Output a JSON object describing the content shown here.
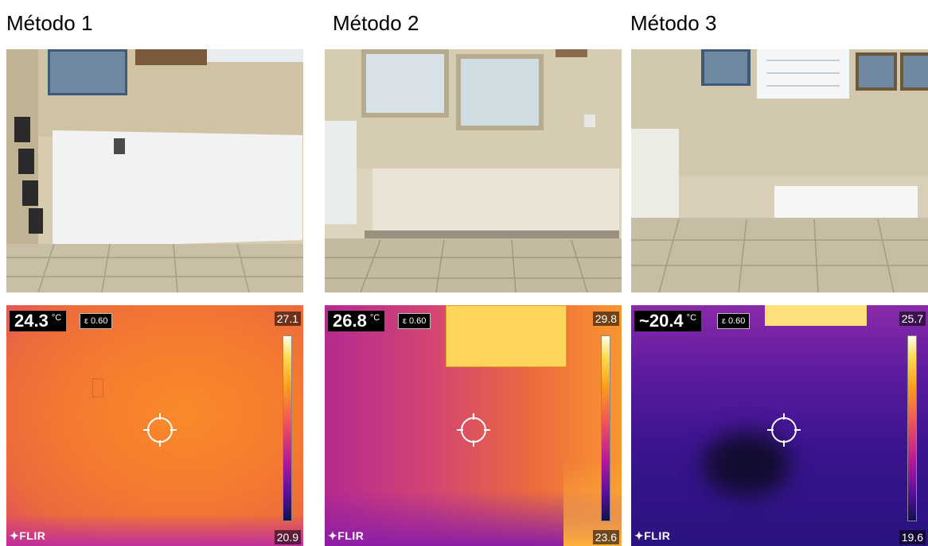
{
  "panels": [
    {
      "title": "Método 1",
      "temp": "24.3",
      "unit": "°C",
      "emissivity": "ε 0.60",
      "max": "27.1",
      "min": "20.9",
      "brand": "FLIR"
    },
    {
      "title": "Método 2",
      "temp": "26.8",
      "unit": "°C",
      "emissivity": "ε 0.60",
      "max": "29.8",
      "min": "23.6",
      "brand": "FLIR"
    },
    {
      "title": "Método 3",
      "temp": "~20.4",
      "unit": "°C",
      "emissivity": "ε 0.60",
      "max": "25.7",
      "min": "19.6",
      "brand": "FLIR"
    }
  ],
  "colors": {
    "hot": "#ffd84a",
    "warm": "#ff9b1e",
    "mid": "#d9307a",
    "cool": "#4a1aa0",
    "cold": "#101050"
  }
}
